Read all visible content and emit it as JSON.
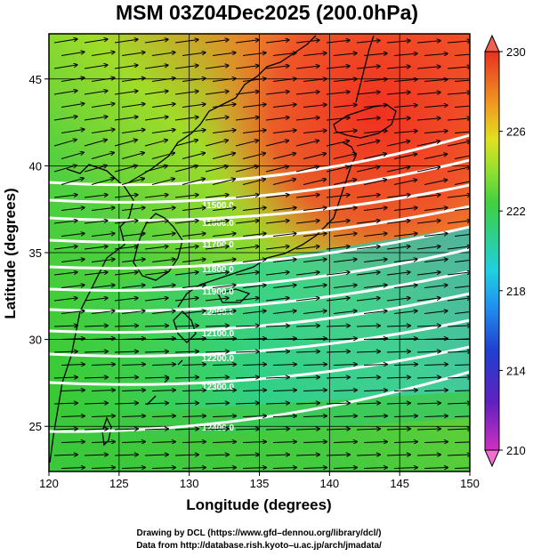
{
  "title": "MSM 03Z04Dec2025 (200.0hPa)",
  "xaxis": {
    "label": "Longitude (degrees)",
    "ticks": [
      "120",
      "125",
      "130",
      "135",
      "140",
      "145",
      "150"
    ],
    "range": [
      120,
      150
    ]
  },
  "yaxis": {
    "label": "Latitude  (degrees)",
    "ticks": [
      "25",
      "30",
      "35",
      "40",
      "45"
    ],
    "range": [
      22.4,
      47.6
    ]
  },
  "colorbar": {
    "ticks": [
      "230",
      "226",
      "222",
      "218",
      "214",
      "210"
    ],
    "range": [
      210,
      230
    ],
    "colors": [
      "#e040c0",
      "#8020c0",
      "#2030c0",
      "#2070f0",
      "#20b0e0",
      "#20d0b0",
      "#30d060",
      "#40d040",
      "#80d030",
      "#c0e020",
      "#f0e020",
      "#f0a020",
      "#f06020",
      "#e03020"
    ]
  },
  "contours": {
    "labels": [
      "11500.0",
      "11600.0",
      "11700.0",
      "11800.0",
      "11900.0",
      "12000.0",
      "12100.0",
      "12200.0",
      "12300.0",
      "12400.0"
    ],
    "color": "#ffffff"
  },
  "field_colors": {
    "low": "#40c020",
    "mid": "#b0e020",
    "high": "#f04020",
    "cool": "#20c8a0"
  },
  "credits": {
    "line1": "Drawing by DCL (https://www.gfd–dennou.org/library/dcl/)",
    "line2": "Data from http://database.rish.kyoto–u.ac.jp/arch/jmadata/"
  }
}
